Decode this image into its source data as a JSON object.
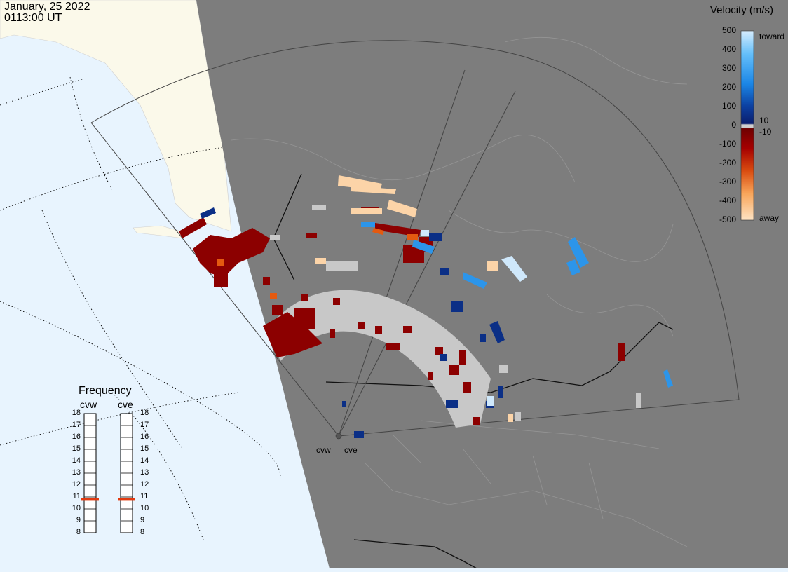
{
  "header": {
    "date": "January, 25 2022",
    "time": "0113:00 UT"
  },
  "velocity_scale": {
    "title": "Velocity (m/s)",
    "ticks": [
      "500",
      "400",
      "300",
      "200",
      "100",
      "0",
      "-100",
      "-200",
      "-300",
      "-400",
      "-500"
    ],
    "toward_label": "toward",
    "away_label": "away",
    "pos_threshold": "10",
    "neg_threshold": "-10",
    "colors": {
      "toward_light": "#cfe8fb",
      "toward_mid": "#2c95ea",
      "toward_dark": "#0b2f86",
      "gap": "#c8c8c8",
      "away_dark": "#8c0000",
      "away_mid": "#e45a10",
      "away_light": "#fcd4a8"
    }
  },
  "frequency": {
    "title": "Frequency",
    "radars": [
      "cvw",
      "cve"
    ],
    "ticks": [
      "18",
      "17",
      "16",
      "15",
      "14",
      "13",
      "12",
      "11",
      "10",
      "9",
      "8"
    ],
    "cvw_mhz": 10.8,
    "cve_mhz": 10.8,
    "marker_color": "#e23a10"
  },
  "radar_sites": {
    "cvw_label": "cvw",
    "cve_label": "cve"
  },
  "map_colors": {
    "ocean": "#e8f4fe",
    "land_day": "#fbf9ea",
    "night_shade": "#7d7d7d",
    "ground_scatter": "#c8c8c8"
  }
}
